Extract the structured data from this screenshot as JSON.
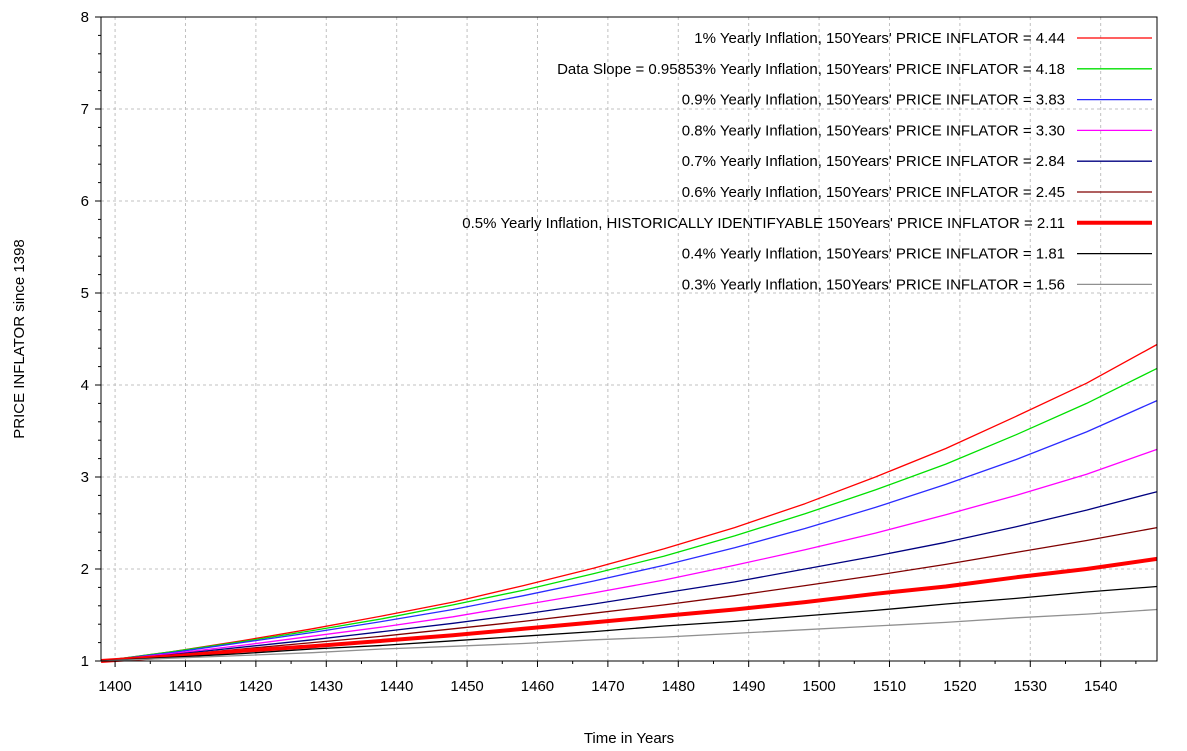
{
  "chart_data": {
    "type": "line",
    "title": "",
    "xlabel": "Time in Years",
    "ylabel": "PRICE INFLATOR since 1398",
    "xlim": [
      1398,
      1548
    ],
    "ylim": [
      1,
      8
    ],
    "grid": true,
    "legend_position": "top-right",
    "x_ticks": [
      1400,
      1410,
      1420,
      1430,
      1440,
      1450,
      1460,
      1470,
      1480,
      1490,
      1500,
      1510,
      1520,
      1530,
      1540
    ],
    "y_ticks": [
      1,
      2,
      3,
      4,
      5,
      6,
      7,
      8
    ],
    "x": [
      1398,
      1408,
      1418,
      1428,
      1438,
      1448,
      1458,
      1468,
      1478,
      1488,
      1498,
      1508,
      1518,
      1528,
      1538,
      1548
    ],
    "series": [
      {
        "name": "1% Yearly Inflation, 150Years' PRICE INFLATOR = 4.44",
        "color": "#ff0000",
        "thick": false,
        "values": [
          1.0,
          1.1,
          1.22,
          1.35,
          1.49,
          1.64,
          1.82,
          2.01,
          2.22,
          2.45,
          2.71,
          3.0,
          3.31,
          3.66,
          4.02,
          4.44
        ]
      },
      {
        "name": "Data Slope = 0.95853% Yearly Inflation, 150Years' PRICE INFLATOR = 4.18",
        "color": "#00e000",
        "thick": false,
        "values": [
          1.0,
          1.1,
          1.21,
          1.33,
          1.46,
          1.61,
          1.77,
          1.95,
          2.14,
          2.36,
          2.6,
          2.86,
          3.14,
          3.46,
          3.8,
          4.18
        ]
      },
      {
        "name": "0.9% Yearly Inflation, 150Years' PRICE INFLATOR = 3.83",
        "color": "#2b2bff",
        "thick": false,
        "values": [
          1.0,
          1.09,
          1.2,
          1.31,
          1.43,
          1.56,
          1.71,
          1.87,
          2.04,
          2.23,
          2.44,
          2.67,
          2.92,
          3.19,
          3.49,
          3.83
        ]
      },
      {
        "name": "0.8% Yearly Inflation, 150Years' PRICE INFLATOR = 3.30",
        "color": "#ff00ff",
        "thick": false,
        "values": [
          1.0,
          1.08,
          1.17,
          1.27,
          1.37,
          1.48,
          1.61,
          1.74,
          1.88,
          2.04,
          2.21,
          2.39,
          2.59,
          2.8,
          3.03,
          3.3
        ]
      },
      {
        "name": "0.7% Yearly Inflation, 150Years' PRICE INFLATOR = 2.84",
        "color": "#000080",
        "thick": false,
        "values": [
          1.0,
          1.07,
          1.15,
          1.23,
          1.32,
          1.41,
          1.51,
          1.62,
          1.74,
          1.86,
          2.0,
          2.14,
          2.29,
          2.46,
          2.64,
          2.84
        ]
      },
      {
        "name": "0.6% Yearly Inflation, 150Years' PRICE INFLATOR = 2.45",
        "color": "#800000",
        "thick": false,
        "values": [
          1.0,
          1.06,
          1.13,
          1.2,
          1.27,
          1.35,
          1.43,
          1.52,
          1.61,
          1.71,
          1.82,
          1.93,
          2.05,
          2.18,
          2.31,
          2.45
        ]
      },
      {
        "name": "0.5% Yearly Inflation, HISTORICALLY IDENTIFYABLE 150Years' PRICE INFLATOR = 2.11",
        "color": "#ff0000",
        "thick": true,
        "values": [
          1.0,
          1.05,
          1.11,
          1.16,
          1.22,
          1.28,
          1.35,
          1.42,
          1.49,
          1.56,
          1.64,
          1.73,
          1.81,
          1.91,
          2.0,
          2.11
        ]
      },
      {
        "name": "0.4% Yearly Inflation, 150Years' PRICE INFLATOR = 1.81",
        "color": "#000000",
        "thick": false,
        "values": [
          1.0,
          1.04,
          1.08,
          1.13,
          1.17,
          1.22,
          1.27,
          1.32,
          1.38,
          1.43,
          1.49,
          1.55,
          1.62,
          1.68,
          1.75,
          1.81
        ]
      },
      {
        "name": "0.3% Yearly Inflation, 150Years' PRICE INFLATOR = 1.56",
        "color": "#909090",
        "thick": false,
        "values": [
          1.0,
          1.03,
          1.06,
          1.09,
          1.13,
          1.16,
          1.19,
          1.23,
          1.26,
          1.3,
          1.34,
          1.38,
          1.42,
          1.47,
          1.51,
          1.56
        ]
      }
    ]
  }
}
